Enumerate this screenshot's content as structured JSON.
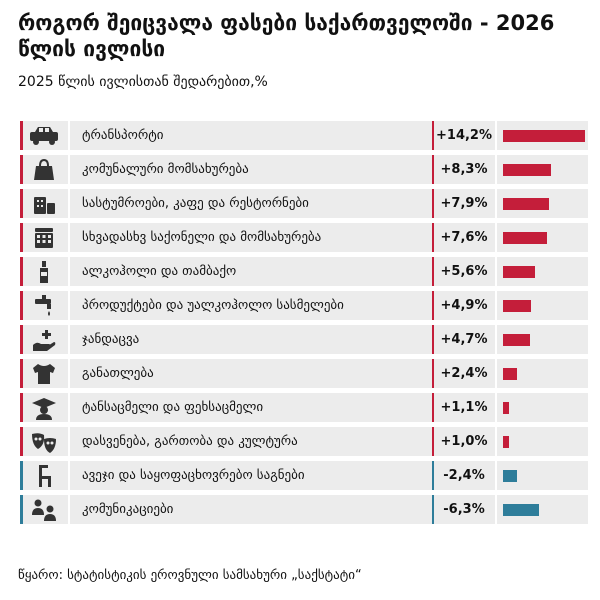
{
  "header": {
    "title": "როგორ შეიცვალა ფასები საქართველოში - 2026 წლის ივლისი",
    "subtitle": "2025 წლის ივლისთან შედარებით,%"
  },
  "footer": {
    "source": "წყარო: სტატისტიკის ეროვნული სამსახური „საქსტატი“"
  },
  "colors": {
    "positive": "#c41e3a",
    "negative": "#2e7d9a",
    "row_bg": "#ececec",
    "icon": "#333333"
  },
  "chart_data": {
    "type": "bar",
    "title": "როგორ შეიცვალა ფასები საქართველოში - 2026 წლის ივლისი",
    "subtitle": "2025 წლის ივლისთან შედარებით,%",
    "orientation": "horizontal",
    "categories": [
      "ტრანსპორტი",
      "კომუნალური მომსახურება",
      "სასტუმროები, კაფე და რესტორნები",
      "სხვადასხვ საქონელი და მომსახურება",
      "ალკოჰოლი და თამბაქო",
      "პროდუქტები და უალკოჰოლო სასმელები",
      "ჯანდაცვა",
      "განათლება",
      "ტანსაცმელი და ფეხსაცმელი",
      "დასვენება, გართობა და კულტურა",
      "ავეჯი და საყოფაცხოვრებო საგნები",
      "კომუნიკაციები"
    ],
    "values": [
      14.2,
      8.3,
      7.9,
      7.6,
      5.6,
      4.9,
      4.7,
      2.4,
      1.1,
      1.0,
      -2.4,
      -6.3
    ],
    "value_labels": [
      "+14,2%",
      "+8,3%",
      "+7,9%",
      "+7,6%",
      "+5,6%",
      "+4,9%",
      "+4,7%",
      "+2,4%",
      "+1,1%",
      "+1,0%",
      "-2,4%",
      "-6,3%"
    ],
    "icons": [
      "car-icon",
      "bag-icon",
      "hotel-cafe-icon",
      "basket-icon",
      "bottle-icon",
      "tap-icon",
      "health-icon",
      "shirt-icon",
      "graduate-icon",
      "masks-icon",
      "chair-icon",
      "people-icon"
    ]
  }
}
